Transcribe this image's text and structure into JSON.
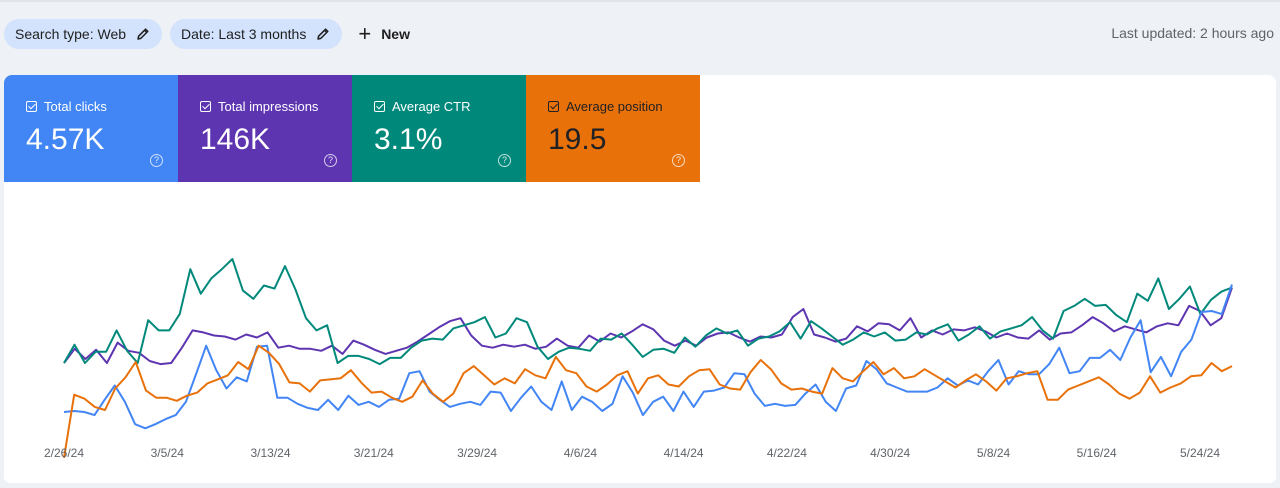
{
  "filters": {
    "search_type": "Search type: Web",
    "date": "Date: Last 3 months",
    "new_label": "New"
  },
  "last_updated": "Last updated: 2 hours ago",
  "metrics": [
    {
      "key": "clicks",
      "label": "Total clicks",
      "value": "4.57K",
      "color": "#4285f4",
      "checked": true
    },
    {
      "key": "impressions",
      "label": "Total impressions",
      "value": "146K",
      "color": "#5e35b1",
      "checked": true
    },
    {
      "key": "ctr",
      "label": "Average CTR",
      "value": "3.1%",
      "color": "#00897b",
      "checked": true
    },
    {
      "key": "position",
      "label": "Average position",
      "value": "19.5",
      "color": "#e8710a",
      "checked": true
    }
  ],
  "chart_data": {
    "type": "line",
    "x_ticks": [
      "2/26/24",
      "3/5/24",
      "3/13/24",
      "3/21/24",
      "3/29/24",
      "4/6/24",
      "4/14/24",
      "4/22/24",
      "4/30/24",
      "5/8/24",
      "5/16/24",
      "5/24/24"
    ],
    "x_range": [
      "2/25/24",
      "5/25/24"
    ],
    "y_axis_labels_shown": false,
    "grid": false,
    "series": [
      {
        "metric": "impressions",
        "color": "#5e35b1",
        "values": [
          48,
          62,
          52,
          61,
          48,
          68,
          60,
          58,
          50,
          47,
          48,
          63,
          80,
          78,
          75,
          74,
          71,
          76,
          73,
          78,
          63,
          65,
          62,
          62,
          60,
          65,
          57,
          70,
          66,
          61,
          57,
          60,
          63,
          69,
          76,
          83,
          89,
          92,
          75,
          65,
          63,
          66,
          64,
          66,
          62,
          64,
          72,
          65,
          63,
          75,
          69,
          77,
          73,
          79,
          86,
          81,
          70,
          65,
          70,
          65,
          73,
          77,
          78,
          73,
          69,
          74,
          73,
          76,
          93,
          101,
          76,
          73,
          69,
          72,
          84,
          79,
          87,
          86,
          80,
          92,
          73,
          80,
          76,
          81,
          80,
          83,
          79,
          73,
          77,
          73,
          72,
          80,
          71,
          77,
          78,
          85,
          93,
          87,
          79,
          84,
          81,
          78,
          84,
          87,
          85,
          104,
          99,
          85,
          92,
          122
        ]
      },
      {
        "metric": "ctr",
        "color": "#00897b",
        "values": [
          48,
          66,
          48,
          59,
          59,
          80,
          60,
          48,
          90,
          80,
          80,
          96,
          140,
          116,
          131,
          140,
          150,
          119,
          111,
          124,
          121,
          143,
          120,
          92,
          80,
          85,
          48,
          55,
          55,
          52,
          47,
          53,
          53,
          63,
          70,
          72,
          71,
          82,
          85,
          88,
          93,
          73,
          77,
          92,
          88,
          64,
          52,
          59,
          63,
          62,
          60,
          72,
          71,
          77,
          66,
          54,
          61,
          62,
          58,
          73,
          64,
          75,
          82,
          77,
          80,
          65,
          72,
          74,
          79,
          88,
          72,
          89,
          82,
          74,
          66,
          71,
          78,
          74,
          78,
          70,
          71,
          78,
          76,
          82,
          86,
          70,
          76,
          84,
          72,
          79,
          82,
          85,
          93,
          80,
          72,
          99,
          104,
          111,
          104,
          105,
          95,
          88,
          116,
          109,
          131,
          101,
          111,
          123,
          96,
          110,
          118,
          122
        ]
      },
      {
        "metric": "clicks",
        "color": "#4285f4",
        "values": [
          0,
          1,
          0,
          -3,
          12,
          26,
          10,
          -12,
          -16,
          -12,
          -7,
          -3,
          10,
          37,
          65,
          41,
          23,
          34,
          30,
          64,
          65,
          14,
          14,
          8,
          4,
          2,
          12,
          2,
          16,
          7,
          10,
          5,
          12,
          13,
          38,
          40,
          20,
          12,
          5,
          8,
          10,
          7,
          20,
          19,
          1,
          14,
          25,
          10,
          2,
          30,
          2,
          15,
          10,
          1,
          8,
          35,
          19,
          -3,
          10,
          15,
          1,
          20,
          5,
          20,
          21,
          24,
          38,
          37,
          18,
          6,
          8,
          6,
          7,
          18,
          27,
          10,
          1,
          23,
          26,
          50,
          42,
          28,
          24,
          20,
          20,
          20,
          24,
          33,
          26,
          31,
          27,
          40,
          51,
          27,
          40,
          37,
          37,
          47,
          63,
          38,
          40,
          53,
          53,
          61,
          51,
          73,
          90,
          39,
          54,
          35,
          59,
          71,
          98,
          99,
          96,
          125
        ]
      },
      {
        "metric": "position",
        "color": "#e8710a",
        "values": [
          -45,
          17,
          13,
          5,
          2,
          23,
          34,
          49,
          21,
          14,
          14,
          11,
          16,
          19,
          28,
          32,
          36,
          49,
          42,
          65,
          58,
          47,
          29,
          28,
          20,
          31,
          32,
          33,
          41,
          29,
          19,
          20,
          14,
          10,
          15,
          31,
          18,
          10,
          18,
          38,
          45,
          36,
          27,
          33,
          28,
          42,
          36,
          33,
          54,
          41,
          38,
          25,
          20,
          27,
          36,
          40,
          18,
          33,
          36,
          27,
          25,
          35,
          41,
          42,
          27,
          23,
          22,
          39,
          51,
          42,
          28,
          22,
          23,
          20,
          18,
          43,
          33,
          30,
          40,
          49,
          37,
          43,
          33,
          35,
          42,
          36,
          30,
          24,
          31,
          37,
          30,
          21,
          33,
          35,
          38,
          40,
          12,
          12,
          22,
          26,
          30,
          34,
          27,
          18,
          13,
          19,
          35,
          19,
          24,
          28,
          35,
          36,
          48,
          40,
          45
        ]
      }
    ]
  }
}
